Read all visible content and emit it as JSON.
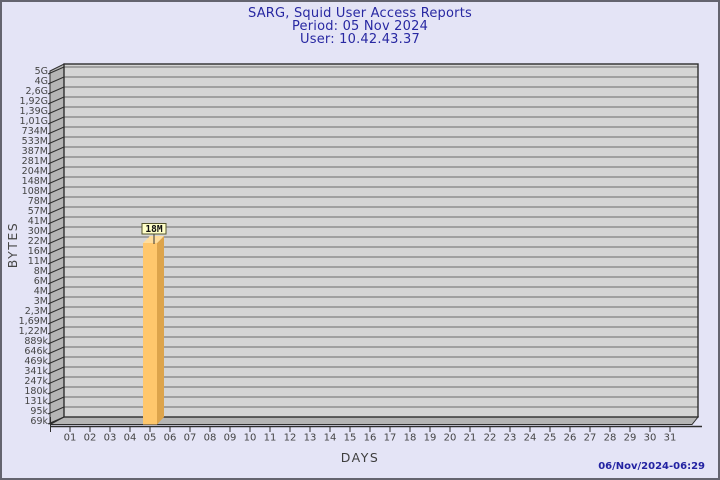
{
  "header": {
    "title": "SARG, Squid User Access Reports",
    "period": "Period: 05 Nov 2024",
    "user": "User: 10.42.43.37"
  },
  "footer": {
    "timestamp": "06/Nov/2024-06:29"
  },
  "chart_data": {
    "type": "bar",
    "style": "3d-bar",
    "title": "SARG, Squid User Access Reports",
    "subtitle": [
      "Period: 05 Nov 2024",
      "User: 10.42.43.37"
    ],
    "xlabel": "DAYS",
    "ylabel": "BYTES",
    "grid": true,
    "y_scale": "log",
    "x_categories": [
      "01",
      "02",
      "03",
      "04",
      "05",
      "06",
      "07",
      "08",
      "09",
      "10",
      "11",
      "12",
      "13",
      "14",
      "15",
      "16",
      "17",
      "18",
      "19",
      "20",
      "21",
      "22",
      "23",
      "24",
      "25",
      "26",
      "27",
      "28",
      "29",
      "30",
      "31"
    ],
    "y_tick_labels": [
      "5G",
      "4G",
      "2,6G",
      "1,92G",
      "1,39G",
      "1,01G",
      "734M",
      "533M",
      "387M",
      "281M",
      "204M",
      "148M",
      "108M",
      "78M",
      "57M",
      "41M",
      "30M",
      "22M",
      "16M",
      "11M",
      "8M",
      "6M",
      "4M",
      "3M",
      "2,3M",
      "1,69M",
      "1,22M",
      "889k",
      "646k",
      "469k",
      "341k",
      "247k",
      "180k",
      "131k",
      "95k",
      "69k"
    ],
    "series": [
      {
        "name": "bytes-per-day",
        "points": [
          {
            "x": "05",
            "value": 18000000,
            "label": "18M"
          }
        ]
      }
    ],
    "colors": {
      "background": "#E4E4F6",
      "plot_face": "#D5D5D5",
      "gridline": "#6C6C6C",
      "wall": "#B5B5B5",
      "outline": "#2E2E2E",
      "bar_front": "#FFC76C",
      "bar_side": "#DDA44B",
      "bar_top": "#FFDD9C",
      "value_box_fill": "#FFFFC8",
      "value_box_border": "#54542C",
      "title_text": "#2828A2",
      "tick_text": "#454545"
    }
  }
}
